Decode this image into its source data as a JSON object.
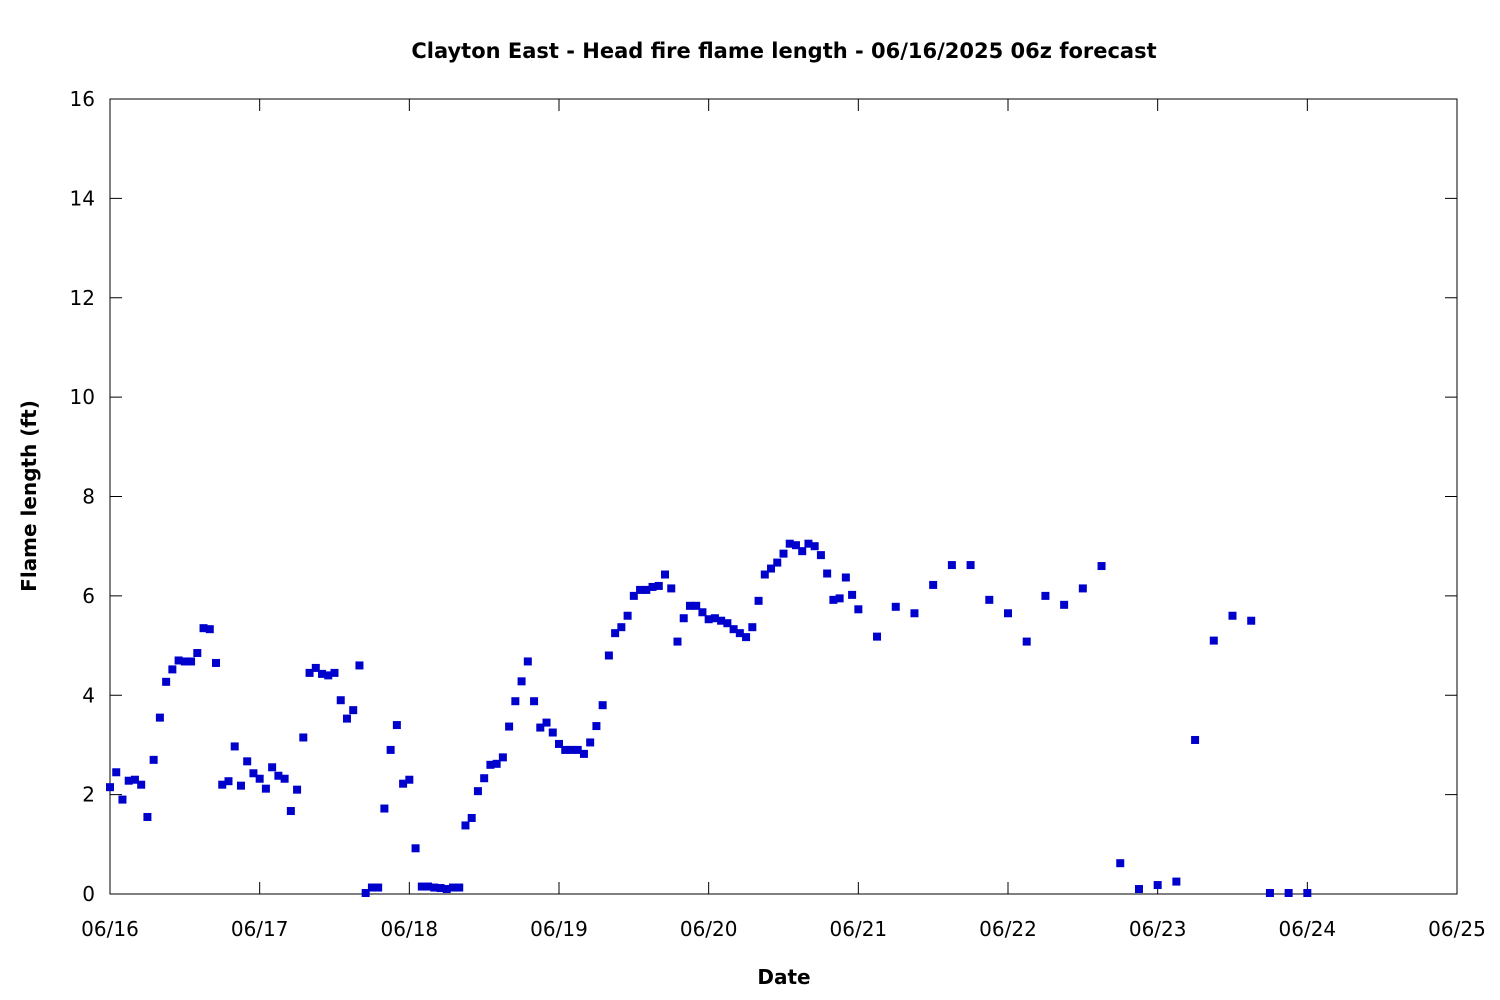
{
  "chart_data": {
    "type": "scatter",
    "title": "Clayton East - Head fire flame length - 06/16/2025 06z forecast",
    "xlabel": "Date",
    "ylabel": "Flame length (ft)",
    "xlim": [
      "2025-06-16T00:00",
      "2025-06-25T00:00"
    ],
    "ylim": [
      0,
      16
    ],
    "x_ticks": [
      "06/16",
      "06/17",
      "06/18",
      "06/19",
      "06/20",
      "06/21",
      "06/22",
      "06/23",
      "06/24",
      "06/25"
    ],
    "y_ticks": [
      "0",
      "2",
      "4",
      "6",
      "8",
      "10",
      "12",
      "14",
      "16"
    ],
    "grid": false,
    "legend": "none",
    "marker": "square",
    "color": "#0000cc",
    "series": [
      {
        "points": [
          [
            "2025-06-16T00:00",
            2.15
          ],
          [
            "2025-06-16T01:00",
            2.45
          ],
          [
            "2025-06-16T02:00",
            1.9
          ],
          [
            "2025-06-16T03:00",
            2.28
          ],
          [
            "2025-06-16T04:00",
            2.3
          ],
          [
            "2025-06-16T05:00",
            2.2
          ],
          [
            "2025-06-16T06:00",
            1.55
          ],
          [
            "2025-06-16T07:00",
            2.7
          ],
          [
            "2025-06-16T08:00",
            3.55
          ],
          [
            "2025-06-16T09:00",
            4.27
          ],
          [
            "2025-06-16T10:00",
            4.52
          ],
          [
            "2025-06-16T11:00",
            4.7
          ],
          [
            "2025-06-16T12:00",
            4.68
          ],
          [
            "2025-06-16T13:00",
            4.68
          ],
          [
            "2025-06-16T14:00",
            4.85
          ],
          [
            "2025-06-16T15:00",
            5.35
          ],
          [
            "2025-06-16T16:00",
            5.33
          ],
          [
            "2025-06-16T17:00",
            4.65
          ],
          [
            "2025-06-16T18:00",
            2.2
          ],
          [
            "2025-06-16T19:00",
            2.27
          ],
          [
            "2025-06-16T20:00",
            2.97
          ],
          [
            "2025-06-16T21:00",
            2.18
          ],
          [
            "2025-06-16T22:00",
            2.67
          ],
          [
            "2025-06-16T23:00",
            2.43
          ],
          [
            "2025-06-17T00:00",
            2.32
          ],
          [
            "2025-06-17T01:00",
            2.12
          ],
          [
            "2025-06-17T02:00",
            2.55
          ],
          [
            "2025-06-17T03:00",
            2.38
          ],
          [
            "2025-06-17T04:00",
            2.32
          ],
          [
            "2025-06-17T05:00",
            1.67
          ],
          [
            "2025-06-17T06:00",
            2.1
          ],
          [
            "2025-06-17T07:00",
            3.15
          ],
          [
            "2025-06-17T08:00",
            4.45
          ],
          [
            "2025-06-17T09:00",
            4.55
          ],
          [
            "2025-06-17T10:00",
            4.43
          ],
          [
            "2025-06-17T11:00",
            4.4
          ],
          [
            "2025-06-17T12:00",
            4.45
          ],
          [
            "2025-06-17T13:00",
            3.9
          ],
          [
            "2025-06-17T14:00",
            3.53
          ],
          [
            "2025-06-17T15:00",
            3.7
          ],
          [
            "2025-06-17T16:00",
            4.6
          ],
          [
            "2025-06-17T17:00",
            0.02
          ],
          [
            "2025-06-17T18:00",
            0.13
          ],
          [
            "2025-06-17T19:00",
            0.13
          ],
          [
            "2025-06-17T20:00",
            1.72
          ],
          [
            "2025-06-17T21:00",
            2.9
          ],
          [
            "2025-06-17T22:00",
            3.4
          ],
          [
            "2025-06-17T23:00",
            2.22
          ],
          [
            "2025-06-18T00:00",
            2.3
          ],
          [
            "2025-06-18T01:00",
            0.92
          ],
          [
            "2025-06-18T02:00",
            0.15
          ],
          [
            "2025-06-18T03:00",
            0.15
          ],
          [
            "2025-06-18T04:00",
            0.13
          ],
          [
            "2025-06-18T05:00",
            0.12
          ],
          [
            "2025-06-18T06:00",
            0.1
          ],
          [
            "2025-06-18T07:00",
            0.13
          ],
          [
            "2025-06-18T08:00",
            0.13
          ],
          [
            "2025-06-18T09:00",
            1.38
          ],
          [
            "2025-06-18T10:00",
            1.53
          ],
          [
            "2025-06-18T11:00",
            2.07
          ],
          [
            "2025-06-18T12:00",
            2.33
          ],
          [
            "2025-06-18T13:00",
            2.6
          ],
          [
            "2025-06-18T14:00",
            2.62
          ],
          [
            "2025-06-18T15:00",
            2.75
          ],
          [
            "2025-06-18T16:00",
            3.37
          ],
          [
            "2025-06-18T17:00",
            3.88
          ],
          [
            "2025-06-18T18:00",
            4.28
          ],
          [
            "2025-06-18T19:00",
            4.68
          ],
          [
            "2025-06-18T20:00",
            3.88
          ],
          [
            "2025-06-18T21:00",
            3.35
          ],
          [
            "2025-06-18T22:00",
            3.45
          ],
          [
            "2025-06-18T23:00",
            3.25
          ],
          [
            "2025-06-19T00:00",
            3.02
          ],
          [
            "2025-06-19T01:00",
            2.9
          ],
          [
            "2025-06-19T02:00",
            2.9
          ],
          [
            "2025-06-19T03:00",
            2.9
          ],
          [
            "2025-06-19T04:00",
            2.82
          ],
          [
            "2025-06-19T05:00",
            3.05
          ],
          [
            "2025-06-19T06:00",
            3.38
          ],
          [
            "2025-06-19T07:00",
            3.8
          ],
          [
            "2025-06-19T08:00",
            4.8
          ],
          [
            "2025-06-19T09:00",
            5.25
          ],
          [
            "2025-06-19T10:00",
            5.37
          ],
          [
            "2025-06-19T11:00",
            5.6
          ],
          [
            "2025-06-19T12:00",
            6.0
          ],
          [
            "2025-06-19T13:00",
            6.12
          ],
          [
            "2025-06-19T14:00",
            6.12
          ],
          [
            "2025-06-19T15:00",
            6.18
          ],
          [
            "2025-06-19T16:00",
            6.2
          ],
          [
            "2025-06-19T17:00",
            6.43
          ],
          [
            "2025-06-19T18:00",
            6.15
          ],
          [
            "2025-06-19T19:00",
            5.08
          ],
          [
            "2025-06-19T20:00",
            5.55
          ],
          [
            "2025-06-19T21:00",
            5.8
          ],
          [
            "2025-06-19T22:00",
            5.8
          ],
          [
            "2025-06-19T23:00",
            5.67
          ],
          [
            "2025-06-20T00:00",
            5.53
          ],
          [
            "2025-06-20T01:00",
            5.55
          ],
          [
            "2025-06-20T02:00",
            5.5
          ],
          [
            "2025-06-20T03:00",
            5.45
          ],
          [
            "2025-06-20T04:00",
            5.33
          ],
          [
            "2025-06-20T05:00",
            5.25
          ],
          [
            "2025-06-20T06:00",
            5.17
          ],
          [
            "2025-06-20T07:00",
            5.37
          ],
          [
            "2025-06-20T08:00",
            5.9
          ],
          [
            "2025-06-20T09:00",
            6.43
          ],
          [
            "2025-06-20T10:00",
            6.55
          ],
          [
            "2025-06-20T11:00",
            6.67
          ],
          [
            "2025-06-20T12:00",
            6.85
          ],
          [
            "2025-06-20T13:00",
            7.05
          ],
          [
            "2025-06-20T14:00",
            7.02
          ],
          [
            "2025-06-20T15:00",
            6.9
          ],
          [
            "2025-06-20T16:00",
            7.05
          ],
          [
            "2025-06-20T17:00",
            7.0
          ],
          [
            "2025-06-20T18:00",
            6.82
          ],
          [
            "2025-06-20T19:00",
            6.45
          ],
          [
            "2025-06-20T20:00",
            5.92
          ],
          [
            "2025-06-20T21:00",
            5.95
          ],
          [
            "2025-06-20T22:00",
            6.37
          ],
          [
            "2025-06-20T23:00",
            6.02
          ],
          [
            "2025-06-21T00:00",
            5.73
          ],
          [
            "2025-06-21T03:00",
            5.18
          ],
          [
            "2025-06-21T06:00",
            5.78
          ],
          [
            "2025-06-21T09:00",
            5.65
          ],
          [
            "2025-06-21T12:00",
            6.22
          ],
          [
            "2025-06-21T15:00",
            6.62
          ],
          [
            "2025-06-21T18:00",
            6.62
          ],
          [
            "2025-06-21T21:00",
            5.92
          ],
          [
            "2025-06-22T00:00",
            5.65
          ],
          [
            "2025-06-22T03:00",
            5.08
          ],
          [
            "2025-06-22T06:00",
            6.0
          ],
          [
            "2025-06-22T09:00",
            5.82
          ],
          [
            "2025-06-22T12:00",
            6.15
          ],
          [
            "2025-06-22T15:00",
            6.6
          ],
          [
            "2025-06-22T18:00",
            0.62
          ],
          [
            "2025-06-22T21:00",
            0.1
          ],
          [
            "2025-06-23T00:00",
            0.18
          ],
          [
            "2025-06-23T03:00",
            0.25
          ],
          [
            "2025-06-23T06:00",
            3.1
          ],
          [
            "2025-06-23T09:00",
            5.1
          ],
          [
            "2025-06-23T12:00",
            5.6
          ],
          [
            "2025-06-23T15:00",
            5.5
          ],
          [
            "2025-06-23T18:00",
            0.02
          ],
          [
            "2025-06-23T21:00",
            0.02
          ],
          [
            "2025-06-24T00:00",
            0.02
          ]
        ]
      }
    ]
  }
}
